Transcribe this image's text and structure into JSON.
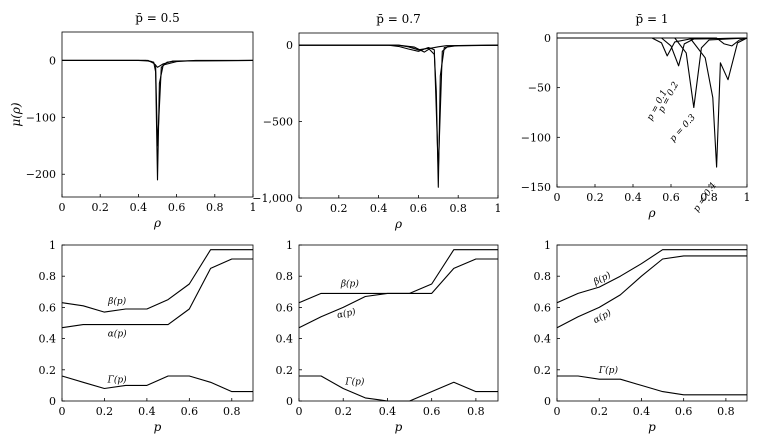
{
  "chart_data": [
    {
      "type": "line",
      "title": "p̄ = 0.5",
      "xlabel": "ρ",
      "ylabel": "μ(ρ)",
      "xlim": [
        0,
        1
      ],
      "ylim": [
        -240,
        50
      ],
      "xticks": [
        0,
        0.2,
        0.4,
        0.6,
        0.8,
        1
      ],
      "xtick_labels": [
        "0",
        "0.2",
        "0.4",
        "0.6",
        "0.8",
        "1"
      ],
      "yticks": [
        0,
        -100,
        -200
      ],
      "ytick_labels": [
        "0",
        "−100",
        "−200"
      ],
      "series": [
        {
          "x": [
            0,
            0.4,
            0.45,
            0.48,
            0.49,
            0.5,
            0.51,
            0.53,
            0.6,
            0.7,
            1
          ],
          "y": [
            0,
            0,
            -1,
            -3,
            -20,
            -210,
            -40,
            -8,
            -2,
            0,
            0
          ]
        },
        {
          "x": [
            0,
            0.44,
            0.47,
            0.49,
            0.5,
            0.52,
            0.55,
            0.6,
            1
          ],
          "y": [
            0,
            0,
            -2,
            -8,
            -150,
            -12,
            -3,
            -1,
            0
          ]
        },
        {
          "x": [
            0,
            0.45,
            0.48,
            0.5,
            0.53,
            0.58,
            1
          ],
          "y": [
            0,
            0,
            -5,
            -12,
            -6,
            -1,
            0
          ]
        }
      ]
    },
    {
      "type": "line",
      "title": "p̄ = 0.7",
      "xlabel": "ρ",
      "ylabel": "",
      "xlim": [
        0,
        1
      ],
      "ylim": [
        -1000,
        80
      ],
      "xticks": [
        0,
        0.2,
        0.4,
        0.6,
        0.8,
        1
      ],
      "xtick_labels": [
        "0",
        "0.2",
        "0.4",
        "0.6",
        "0.8",
        "1"
      ],
      "yticks": [
        0,
        -500,
        -1000
      ],
      "ytick_labels": [
        "0",
        "−500",
        "−1,000"
      ],
      "series": [
        {
          "x": [
            0,
            0.5,
            0.55,
            0.6,
            0.65,
            0.68,
            0.69,
            0.7,
            0.71,
            0.73,
            0.8,
            1
          ],
          "y": [
            0,
            0,
            -10,
            -30,
            -20,
            -60,
            -300,
            -930,
            -200,
            -15,
            -2,
            0
          ]
        },
        {
          "x": [
            0,
            0.45,
            0.5,
            0.55,
            0.6,
            0.65,
            0.68,
            0.7,
            0.72,
            0.75,
            1
          ],
          "y": [
            0,
            0,
            -8,
            -25,
            -40,
            -15,
            -30,
            -820,
            -40,
            -5,
            0
          ]
        },
        {
          "x": [
            0,
            0.5,
            0.58,
            0.63,
            0.66,
            0.7,
            0.74,
            1
          ],
          "y": [
            0,
            0,
            -12,
            -45,
            -20,
            -10,
            -3,
            0
          ]
        }
      ]
    },
    {
      "type": "line",
      "title": "p̄ = 1",
      "xlabel": "ρ",
      "ylabel": "",
      "xlim": [
        0,
        1
      ],
      "ylim": [
        -150,
        5
      ],
      "xticks": [
        0,
        0.2,
        0.4,
        0.6,
        0.8,
        1
      ],
      "xtick_labels": [
        "0",
        "0.2",
        "0.4",
        "0.6",
        "0.8",
        "1"
      ],
      "yticks": [
        0,
        -50,
        -100,
        -150
      ],
      "ytick_labels": [
        "0",
        "−50",
        "−100",
        "−150"
      ],
      "annotations": [
        "p = 0.1",
        "p = 0.2",
        "p = 0.3",
        "p = 0.4"
      ],
      "series": [
        {
          "x": [
            0,
            0.5,
            0.55,
            0.58,
            0.62,
            0.7,
            1
          ],
          "y": [
            0,
            0,
            -5,
            -18,
            -4,
            -1,
            0
          ]
        },
        {
          "x": [
            0,
            0.55,
            0.6,
            0.64,
            0.67,
            0.72,
            1
          ],
          "y": [
            0,
            0,
            -8,
            -28,
            -6,
            -1,
            0
          ]
        },
        {
          "x": [
            0,
            0.62,
            0.68,
            0.72,
            0.76,
            0.8,
            1
          ],
          "y": [
            0,
            0,
            -15,
            -70,
            -10,
            -2,
            0
          ]
        },
        {
          "x": [
            0,
            0.7,
            0.78,
            0.82,
            0.84,
            0.86,
            0.9,
            0.95,
            1
          ],
          "y": [
            0,
            0,
            -20,
            -60,
            -130,
            -25,
            -42,
            -5,
            0
          ]
        },
        {
          "x": [
            0,
            0.84,
            0.88,
            0.92,
            0.96,
            1
          ],
          "y": [
            0,
            0,
            -6,
            -8,
            -2,
            0
          ]
        }
      ]
    },
    {
      "type": "line",
      "title": "",
      "xlabel": "p",
      "ylabel": "",
      "xlim": [
        0,
        0.9
      ],
      "ylim": [
        0,
        1
      ],
      "xticks": [
        0,
        0.2,
        0.4,
        0.6,
        0.8
      ],
      "xtick_labels": [
        "0",
        "0.2",
        "0.4",
        "0.6",
        "0.8"
      ],
      "yticks": [
        0,
        0.2,
        0.4,
        0.6,
        0.8,
        1
      ],
      "ytick_labels": [
        "0",
        "0.2",
        "0.4",
        "0.6",
        "0.8",
        "1"
      ],
      "series": [
        {
          "name": "β(p)",
          "x": [
            0,
            0.1,
            0.2,
            0.3,
            0.4,
            0.5,
            0.6,
            0.7,
            0.8,
            0.9
          ],
          "y": [
            0.63,
            0.61,
            0.57,
            0.59,
            0.59,
            0.65,
            0.75,
            0.97,
            0.97,
            0.97
          ]
        },
        {
          "name": "α(p)",
          "x": [
            0,
            0.1,
            0.2,
            0.3,
            0.4,
            0.5,
            0.6,
            0.7,
            0.8,
            0.9
          ],
          "y": [
            0.47,
            0.49,
            0.49,
            0.49,
            0.49,
            0.49,
            0.59,
            0.85,
            0.91,
            0.91
          ]
        },
        {
          "name": "Γ(p)",
          "x": [
            0,
            0.1,
            0.2,
            0.3,
            0.4,
            0.5,
            0.6,
            0.7,
            0.8,
            0.9
          ],
          "y": [
            0.16,
            0.12,
            0.08,
            0.1,
            0.1,
            0.16,
            0.16,
            0.12,
            0.06,
            0.06
          ]
        }
      ]
    },
    {
      "type": "line",
      "title": "",
      "xlabel": "p",
      "ylabel": "",
      "xlim": [
        0,
        0.9
      ],
      "ylim": [
        0,
        1
      ],
      "xticks": [
        0,
        0.2,
        0.4,
        0.6,
        0.8
      ],
      "xtick_labels": [
        "0",
        "0.2",
        "0.4",
        "0.6",
        "0.8"
      ],
      "yticks": [
        0,
        0.2,
        0.4,
        0.6,
        0.8,
        1
      ],
      "ytick_labels": [
        "0",
        "0.2",
        "0.4",
        "0.6",
        "0.8",
        "1"
      ],
      "series": [
        {
          "name": "β(p)",
          "x": [
            0,
            0.1,
            0.2,
            0.3,
            0.4,
            0.5,
            0.6,
            0.7,
            0.8,
            0.9
          ],
          "y": [
            0.63,
            0.69,
            0.69,
            0.69,
            0.69,
            0.69,
            0.75,
            0.97,
            0.97,
            0.97
          ]
        },
        {
          "name": "α(p)",
          "x": [
            0,
            0.1,
            0.2,
            0.3,
            0.4,
            0.5,
            0.6,
            0.7,
            0.8,
            0.9
          ],
          "y": [
            0.47,
            0.54,
            0.6,
            0.67,
            0.69,
            0.69,
            0.69,
            0.85,
            0.91,
            0.91
          ]
        },
        {
          "name": "Γ(p)",
          "x": [
            0,
            0.1,
            0.2,
            0.3,
            0.4,
            0.5,
            0.6,
            0.7,
            0.8,
            0.9
          ],
          "y": [
            0.16,
            0.16,
            0.08,
            0.02,
            0,
            0,
            0.06,
            0.12,
            0.06,
            0.06
          ]
        }
      ]
    },
    {
      "type": "line",
      "title": "",
      "xlabel": "p",
      "ylabel": "",
      "xlim": [
        0,
        0.9
      ],
      "ylim": [
        0,
        1
      ],
      "xticks": [
        0,
        0.2,
        0.4,
        0.6,
        0.8
      ],
      "xtick_labels": [
        "0",
        "0.2",
        "0.4",
        "0.6",
        "0.8"
      ],
      "yticks": [
        0,
        0.2,
        0.4,
        0.6,
        0.8,
        1
      ],
      "ytick_labels": [
        "0",
        "0.2",
        "0.4",
        "0.6",
        "0.8",
        "1"
      ],
      "series": [
        {
          "name": "β(p)",
          "x": [
            0,
            0.1,
            0.2,
            0.3,
            0.4,
            0.5,
            0.6,
            0.7,
            0.8,
            0.9
          ],
          "y": [
            0.63,
            0.69,
            0.73,
            0.8,
            0.88,
            0.97,
            0.97,
            0.97,
            0.97,
            0.97
          ]
        },
        {
          "name": "α(p)",
          "x": [
            0,
            0.1,
            0.2,
            0.3,
            0.4,
            0.5,
            0.6,
            0.7,
            0.8,
            0.9
          ],
          "y": [
            0.47,
            0.54,
            0.6,
            0.68,
            0.8,
            0.91,
            0.93,
            0.93,
            0.93,
            0.93
          ]
        },
        {
          "name": "Γ(p)",
          "x": [
            0,
            0.1,
            0.2,
            0.3,
            0.4,
            0.5,
            0.6,
            0.7,
            0.8,
            0.9
          ],
          "y": [
            0.16,
            0.16,
            0.14,
            0.14,
            0.1,
            0.06,
            0.04,
            0.04,
            0.04,
            0.04
          ]
        }
      ]
    }
  ]
}
